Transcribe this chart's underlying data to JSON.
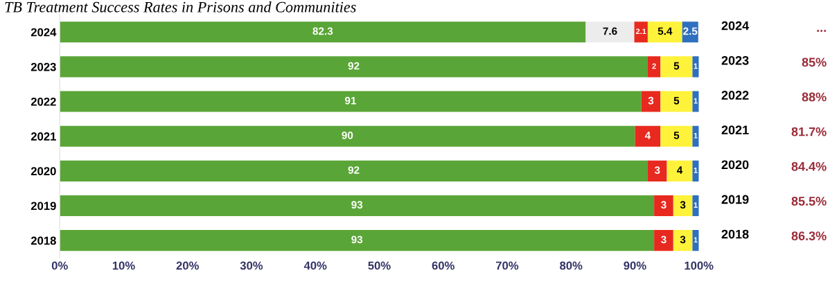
{
  "chart_data": {
    "type": "bar",
    "orientation": "horizontal",
    "stacked": true,
    "title": "TB Treatment Success Rates in Prisons and Communities",
    "categories": [
      "2024",
      "2023",
      "2022",
      "2021",
      "2020",
      "2019",
      "2018"
    ],
    "series": [
      {
        "color": "#5aa537",
        "values": [
          82.3,
          92,
          91,
          90,
          92,
          93,
          93
        ]
      },
      {
        "color": "#ececec",
        "values": [
          7.6,
          null,
          null,
          null,
          null,
          null,
          null
        ]
      },
      {
        "color": "#e8291f",
        "values": [
          2.1,
          2,
          3,
          4,
          3,
          3,
          3
        ]
      },
      {
        "color": "#fff23a",
        "values": [
          5.4,
          5,
          5,
          5,
          4,
          3,
          3
        ]
      },
      {
        "color": "#2f6fbf",
        "values": [
          2.5,
          1,
          1,
          1,
          1,
          1,
          1
        ]
      }
    ],
    "data_labels": true,
    "xlim": [
      0,
      100
    ],
    "xticks": [
      {
        "value": 0,
        "label": "0%"
      },
      {
        "value": 10,
        "label": "10%"
      },
      {
        "value": 20,
        "label": "20%"
      },
      {
        "value": 30,
        "label": "30%"
      },
      {
        "value": 40,
        "label": "40%"
      },
      {
        "value": 50,
        "label": "50%"
      },
      {
        "value": 60,
        "label": "60%"
      },
      {
        "value": 70,
        "label": "70%"
      },
      {
        "value": 80,
        "label": "80%"
      },
      {
        "value": 90,
        "label": "90%"
      },
      {
        "value": 100,
        "label": "100%"
      }
    ],
    "grid": false,
    "annotations": [
      "2024",
      "...",
      "2023",
      "85%",
      "2022",
      "88%",
      "2021",
      "81.7%",
      "2020",
      "84.4%",
      "2019",
      "85.5%",
      "2018",
      "86.3%"
    ]
  }
}
